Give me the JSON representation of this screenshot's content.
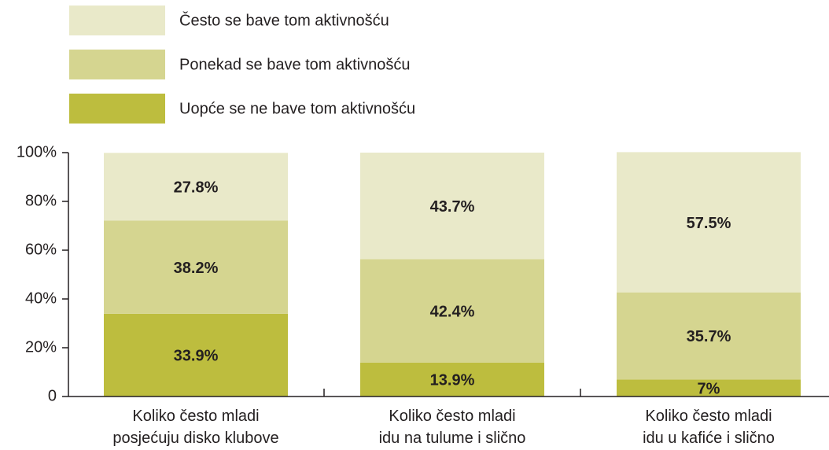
{
  "chart_data": {
    "type": "stacked_bar",
    "categories": [
      "Koliko često mladi\nposjećuju disko klubove",
      "Koliko često mladi\nidu na tulume i slično",
      "Koliko često mladi\nidu u kafiće i slično"
    ],
    "series": [
      {
        "name": "Uopće se ne bave tom aktivnošću",
        "color": "#bdbd3e",
        "values": [
          33.9,
          13.9,
          7
        ],
        "value_labels": [
          "33.9%",
          "13.9%",
          "7%"
        ]
      },
      {
        "name": "Ponekad se bave tom aktivnošću",
        "color": "#d5d590",
        "values": [
          38.2,
          42.4,
          35.7
        ],
        "value_labels": [
          "38.2%",
          "42.4%",
          "35.7%"
        ]
      },
      {
        "name": "Često se bave tom aktivnošću",
        "color": "#e9e9c9",
        "values": [
          27.8,
          43.7,
          57.5
        ],
        "value_labels": [
          "27.8%",
          "43.7%",
          "57.5%"
        ]
      }
    ],
    "ylim": [
      0,
      100
    ],
    "yticks": [
      0,
      {
        "value": 20,
        "label": "20%"
      },
      {
        "value": 40,
        "label": "40%"
      },
      {
        "value": 60,
        "label": "60%"
      },
      {
        "value": 80,
        "label": "80%"
      },
      {
        "value": 100,
        "label": "100%"
      }
    ]
  }
}
